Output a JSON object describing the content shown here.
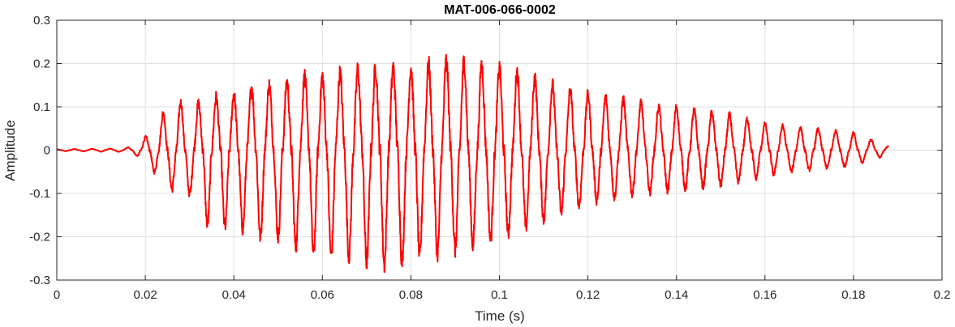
{
  "chart_data": {
    "type": "line",
    "title": "MAT-006-066-0002",
    "xlabel": "Time (s)",
    "ylabel": "Amplitude",
    "xlim": [
      0,
      0.2
    ],
    "ylim": [
      -0.3,
      0.3
    ],
    "xticks": [
      0,
      0.02,
      0.04,
      0.06,
      0.08,
      0.1,
      0.12,
      0.14,
      0.16,
      0.18,
      0.2
    ],
    "xtick_labels": [
      "0",
      "0.02",
      "0.04",
      "0.06",
      "0.08",
      "0.1",
      "0.12",
      "0.14",
      "0.16",
      "0.18",
      "0.2"
    ],
    "yticks": [
      -0.3,
      -0.2,
      -0.1,
      0,
      0.1,
      0.2,
      0.3
    ],
    "ytick_labels": [
      "-0.3",
      "-0.2",
      "-0.1",
      "0",
      "0.1",
      "0.2",
      "0.3"
    ],
    "grid": true,
    "legend": "none",
    "series": [
      {
        "color": "#ff0000",
        "envelope": {
          "t": [
            0,
            0.015,
            0.018,
            0.022,
            0.026,
            0.03,
            0.035,
            0.04,
            0.045,
            0.05,
            0.055,
            0.06,
            0.065,
            0.07,
            0.075,
            0.08,
            0.085,
            0.09,
            0.095,
            0.1,
            0.105,
            0.11,
            0.115,
            0.12,
            0.125,
            0.13,
            0.135,
            0.14,
            0.145,
            0.15,
            0.155,
            0.16,
            0.165,
            0.17,
            0.175,
            0.18,
            0.185,
            0.188
          ],
          "upper": [
            0.002,
            0.004,
            0.01,
            0.05,
            0.12,
            0.1,
            0.12,
            0.13,
            0.15,
            0.15,
            0.17,
            0.17,
            0.18,
            0.19,
            0.19,
            0.19,
            0.2,
            0.21,
            0.2,
            0.19,
            0.18,
            0.16,
            0.14,
            0.13,
            0.12,
            0.115,
            0.1,
            0.1,
            0.09,
            0.085,
            0.075,
            0.06,
            0.055,
            0.05,
            0.045,
            0.04,
            0.02,
            0.01
          ],
          "lower": [
            -0.002,
            -0.004,
            -0.012,
            -0.05,
            -0.09,
            -0.1,
            -0.19,
            -0.17,
            -0.2,
            -0.2,
            -0.23,
            -0.245,
            -0.24,
            -0.26,
            -0.265,
            -0.25,
            -0.24,
            -0.23,
            -0.215,
            -0.2,
            -0.18,
            -0.16,
            -0.14,
            -0.12,
            -0.11,
            -0.1,
            -0.095,
            -0.09,
            -0.085,
            -0.08,
            -0.07,
            -0.06,
            -0.05,
            -0.045,
            -0.04,
            -0.035,
            -0.02,
            -0.01
          ]
        },
        "frequency_hz": 250,
        "end_time": 0.188
      }
    ]
  }
}
